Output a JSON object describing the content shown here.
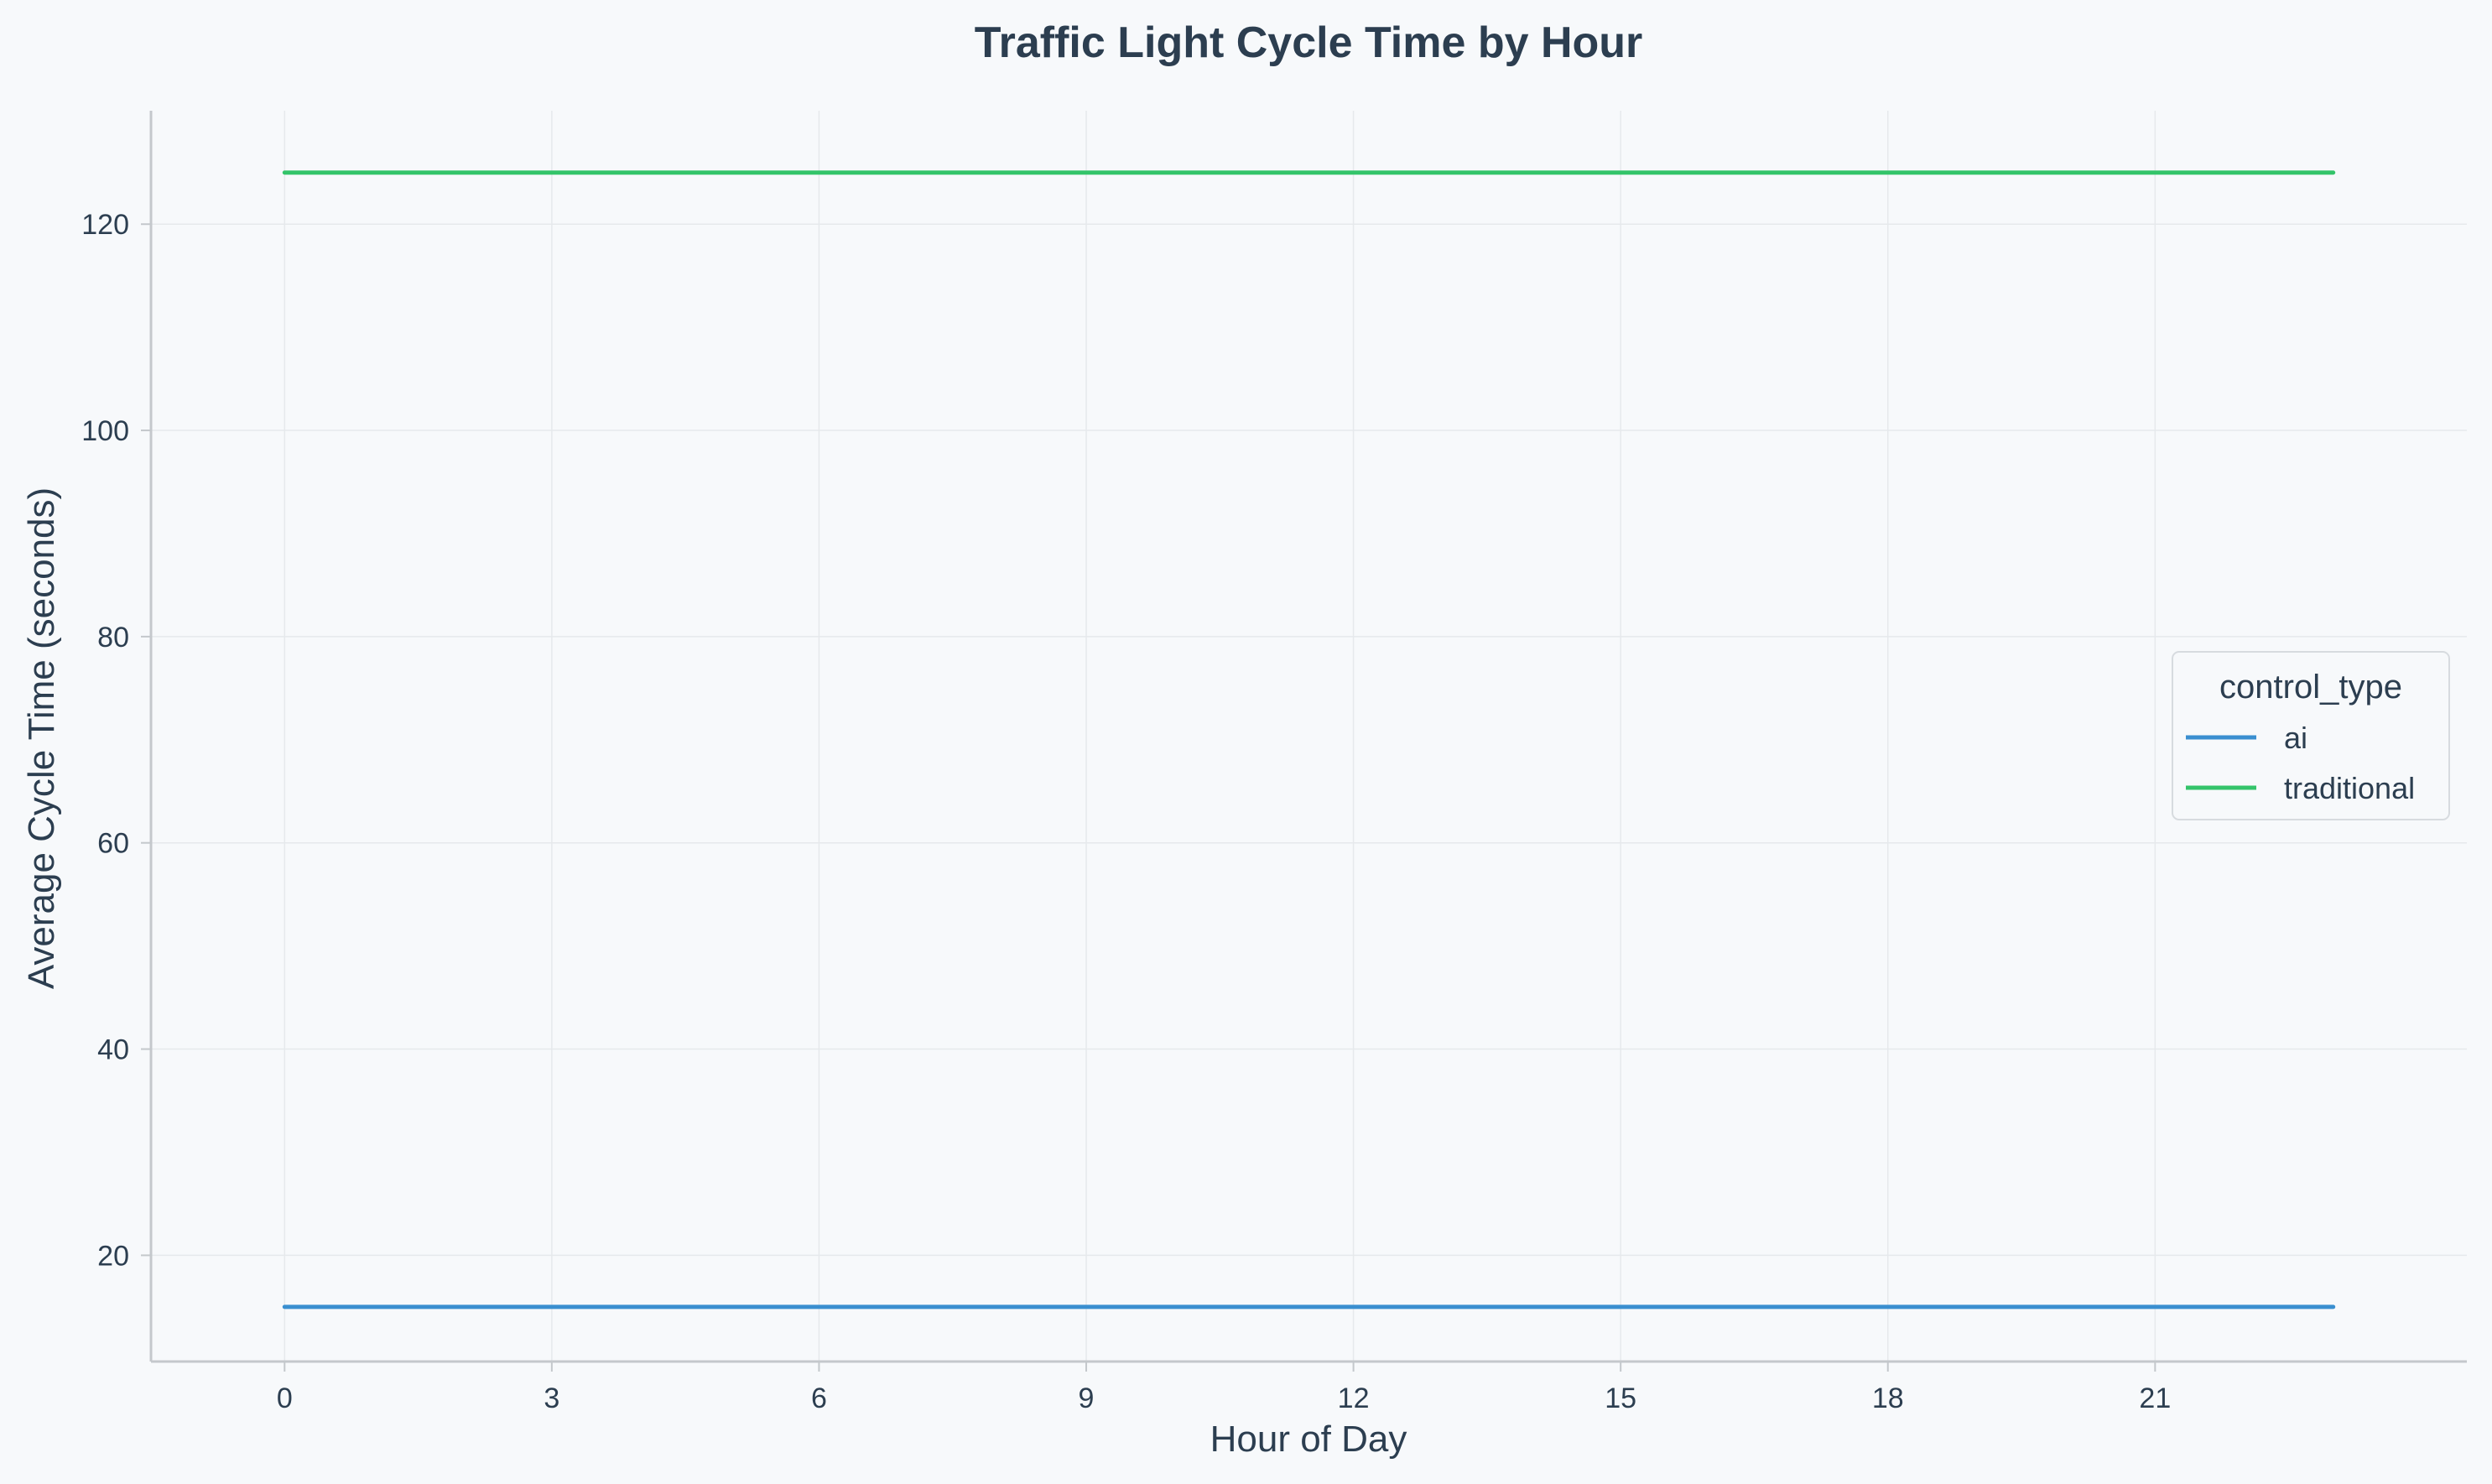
{
  "chart_data": {
    "type": "line",
    "title": "Traffic Light Cycle Time by Hour",
    "xlabel": "Hour of Day",
    "ylabel": "Average Cycle Time (seconds)",
    "xlim": [
      -1.5,
      24.5
    ],
    "ylim": [
      9.7,
      131
    ],
    "xticks": [
      0,
      3,
      6,
      9,
      12,
      15,
      18,
      21
    ],
    "yticks": [
      20,
      40,
      60,
      80,
      100,
      120
    ],
    "grid": true,
    "x": [
      0,
      1,
      2,
      3,
      4,
      5,
      6,
      7,
      8,
      9,
      10,
      11,
      12,
      13,
      14,
      15,
      16,
      17,
      18,
      19,
      20,
      21,
      22,
      23
    ],
    "series": [
      {
        "name": "ai",
        "color": "#3a8fd0",
        "values": [
          15,
          15,
          15,
          15,
          15,
          15,
          15,
          15,
          15,
          15,
          15,
          15,
          15,
          15,
          15,
          15,
          15,
          15,
          15,
          15,
          15,
          15,
          15,
          15
        ]
      },
      {
        "name": "traditional",
        "color": "#34c46a",
        "values": [
          125,
          125,
          125,
          125,
          125,
          125,
          125,
          125,
          125,
          125,
          125,
          125,
          125,
          125,
          125,
          125,
          125,
          125,
          125,
          125,
          125,
          125,
          125,
          125
        ]
      }
    ],
    "legend": {
      "title": "control_type",
      "position": "center-right"
    }
  }
}
